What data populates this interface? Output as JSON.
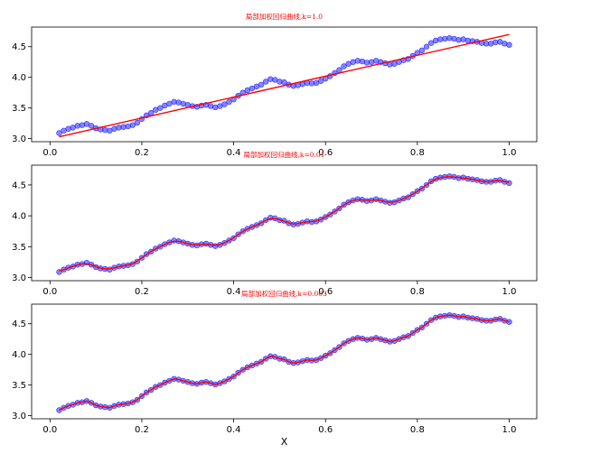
{
  "colors": {
    "points": "#1f1fff",
    "fit_line": "#ff0000",
    "title": "#ff0000"
  },
  "chart_data": [
    {
      "type": "scatter",
      "title": "局部加权回归曲线,k=1.0",
      "xlabel": "",
      "ylabel": "",
      "xlim": [
        -0.04,
        1.06
      ],
      "ylim": [
        2.95,
        4.82
      ],
      "x_ticks": [
        "0.0",
        "0.2",
        "0.4",
        "0.6",
        "0.8",
        "1.0"
      ],
      "y_ticks": [
        "3.0",
        "3.5",
        "4.0",
        "4.5"
      ],
      "grid": false,
      "series": [
        {
          "kind": "points",
          "marker": "circle"
        },
        {
          "kind": "line",
          "x": [
            0.02,
            1.0
          ],
          "y": [
            3.03,
            4.7
          ]
        }
      ]
    },
    {
      "type": "scatter",
      "title": "局部加权回归曲线,k=0.01",
      "xlabel": "",
      "ylabel": "",
      "xlim": [
        -0.04,
        1.06
      ],
      "ylim": [
        2.95,
        4.82
      ],
      "x_ticks": [
        "0.0",
        "0.2",
        "0.4",
        "0.6",
        "0.8",
        "1.0"
      ],
      "y_ticks": [
        "3.0",
        "3.5",
        "4.0",
        "4.5"
      ],
      "grid": false,
      "series": [
        {
          "kind": "points",
          "marker": "circle"
        },
        {
          "kind": "line",
          "smoothing": "k=0.01"
        }
      ]
    },
    {
      "type": "scatter",
      "title": "局部加权回归曲线,k=0.003",
      "xlabel": "X",
      "ylabel": "",
      "xlim": [
        -0.04,
        1.06
      ],
      "ylim": [
        2.95,
        4.82
      ],
      "x_ticks": [
        "0.0",
        "0.2",
        "0.4",
        "0.6",
        "0.8",
        "1.0"
      ],
      "y_ticks": [
        "3.0",
        "3.5",
        "4.0",
        "4.5"
      ],
      "grid": false,
      "series": [
        {
          "kind": "points",
          "marker": "circle"
        },
        {
          "kind": "line",
          "smoothing": "k=0.003"
        }
      ]
    }
  ],
  "data_points": {
    "x": [
      0.02,
      0.03,
      0.04,
      0.05,
      0.06,
      0.07,
      0.08,
      0.09,
      0.1,
      0.11,
      0.12,
      0.13,
      0.14,
      0.15,
      0.16,
      0.17,
      0.18,
      0.19,
      0.2,
      0.21,
      0.22,
      0.23,
      0.24,
      0.25,
      0.26,
      0.27,
      0.28,
      0.29,
      0.3,
      0.31,
      0.32,
      0.33,
      0.34,
      0.35,
      0.36,
      0.37,
      0.38,
      0.39,
      0.4,
      0.41,
      0.42,
      0.43,
      0.44,
      0.45,
      0.46,
      0.47,
      0.48,
      0.49,
      0.5,
      0.51,
      0.52,
      0.53,
      0.54,
      0.55,
      0.56,
      0.57,
      0.58,
      0.59,
      0.6,
      0.61,
      0.62,
      0.63,
      0.64,
      0.65,
      0.66,
      0.67,
      0.68,
      0.69,
      0.7,
      0.71,
      0.72,
      0.73,
      0.74,
      0.75,
      0.76,
      0.77,
      0.78,
      0.79,
      0.8,
      0.81,
      0.82,
      0.83,
      0.84,
      0.85,
      0.86,
      0.87,
      0.88,
      0.89,
      0.9,
      0.91,
      0.92,
      0.93,
      0.94,
      0.95,
      0.96,
      0.97,
      0.98,
      0.99,
      1.0
    ],
    "y": [
      3.09,
      3.13,
      3.16,
      3.18,
      3.21,
      3.22,
      3.24,
      3.21,
      3.17,
      3.15,
      3.14,
      3.13,
      3.16,
      3.18,
      3.19,
      3.2,
      3.22,
      3.26,
      3.32,
      3.38,
      3.42,
      3.47,
      3.5,
      3.54,
      3.57,
      3.6,
      3.59,
      3.57,
      3.55,
      3.53,
      3.52,
      3.54,
      3.55,
      3.53,
      3.51,
      3.53,
      3.56,
      3.6,
      3.64,
      3.7,
      3.75,
      3.79,
      3.82,
      3.85,
      3.88,
      3.93,
      3.97,
      3.96,
      3.93,
      3.92,
      3.88,
      3.86,
      3.87,
      3.89,
      3.91,
      3.9,
      3.91,
      3.94,
      3.98,
      4.02,
      4.07,
      4.12,
      4.18,
      4.22,
      4.25,
      4.27,
      4.26,
      4.24,
      4.25,
      4.27,
      4.25,
      4.23,
      4.21,
      4.22,
      4.25,
      4.28,
      4.3,
      4.35,
      4.4,
      4.44,
      4.5,
      4.56,
      4.6,
      4.62,
      4.63,
      4.64,
      4.63,
      4.61,
      4.62,
      4.6,
      4.59,
      4.58,
      4.56,
      4.55,
      4.55,
      4.57,
      4.58,
      4.55,
      4.53
    ]
  }
}
